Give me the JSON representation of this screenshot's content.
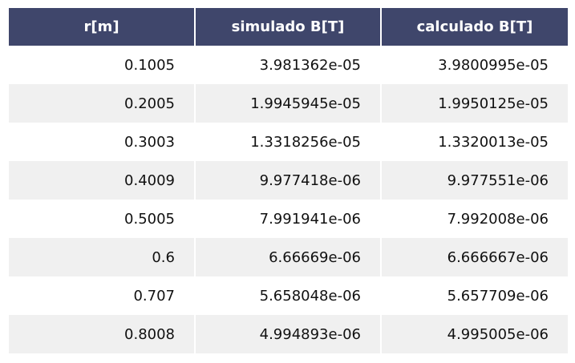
{
  "chart_data": {
    "type": "table",
    "columns": [
      "r[m]",
      "simulado B[T]",
      "calculado B[T]"
    ],
    "rows": [
      [
        "0.1005",
        "3.981362e-05",
        "3.9800995e-05"
      ],
      [
        "0.2005",
        "1.9945945e-05",
        "1.9950125e-05"
      ],
      [
        "0.3003",
        "1.3318256e-05",
        "1.3320013e-05"
      ],
      [
        "0.4009",
        "9.977418e-06",
        "9.977551e-06"
      ],
      [
        "0.5005",
        "7.991941e-06",
        "7.992008e-06"
      ],
      [
        "0.6",
        "6.66669e-06",
        "6.666667e-06"
      ],
      [
        "0.707",
        "5.658048e-06",
        "5.657709e-06"
      ],
      [
        "0.8008",
        "4.994893e-06",
        "4.995005e-06"
      ]
    ]
  },
  "colors": {
    "header_bg": "#3f466b",
    "header_text": "#ffffff",
    "row_alt_bg": "#f0f0f0",
    "row_bg": "#ffffff"
  }
}
